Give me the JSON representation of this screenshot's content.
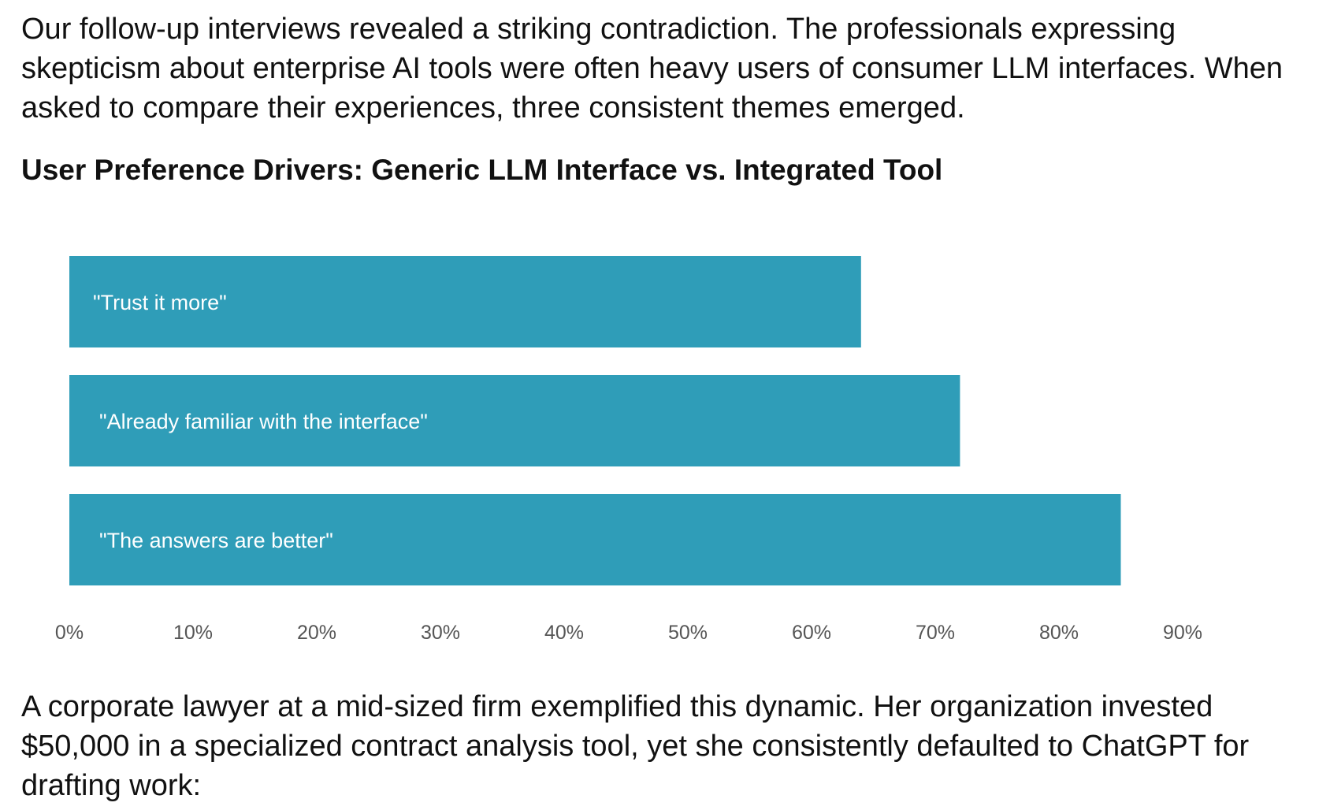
{
  "intro_text": "Our follow-up interviews revealed a striking contradiction. The professionals expressing skepticism about enterprise AI tools were often heavy users of consumer LLM interfaces. When asked to compare their experiences, three consistent themes emerged.",
  "outro_text": "A corporate lawyer at a mid-sized firm exemplified this dynamic. Her organization invested $50,000 in a specialized contract analysis tool, yet she consistently defaulted to ChatGPT for drafting work:",
  "chart_data": {
    "type": "bar",
    "orientation": "horizontal",
    "title": "User Preference Drivers: Generic LLM Interface vs. Integrated Tool",
    "categories": [
      "\"Trust it more\"",
      "\"Already familiar with the interface\"",
      "\"The answers are better\""
    ],
    "values": [
      64,
      72,
      85
    ],
    "unit": "%",
    "xlim": [
      0,
      90
    ],
    "xticks": [
      "0%",
      "10%",
      "20%",
      "30%",
      "40%",
      "50%",
      "60%",
      "70%",
      "80%",
      "90%"
    ],
    "bar_color": "#2f9db8",
    "xlabel": "",
    "ylabel": "",
    "grid": false,
    "legend": "none"
  }
}
